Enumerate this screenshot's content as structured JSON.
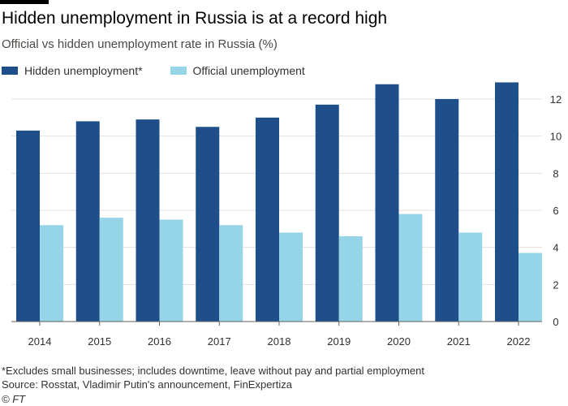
{
  "header": {
    "title": "Hidden unemployment in Russia is at a record high",
    "subtitle": "Official vs hidden unemployment rate in Russia (%)"
  },
  "legend": {
    "hidden_label": "Hidden unemployment*",
    "official_label": "Official unemployment"
  },
  "colors": {
    "hidden": "#1f4f8b",
    "official": "#96d4e8",
    "grid": "#e6e0da",
    "axis": "#66605c",
    "tick_text": "#33302e"
  },
  "footer": {
    "footnote": "*Excludes small businesses; includes downtime, leave without pay and partial employment",
    "source": "Source: Rosstat, Vladimir Putin's announcement, FinExpertiza",
    "credit": "© FT"
  },
  "chart_data": {
    "type": "bar",
    "title": "Hidden unemployment in Russia is at a record high",
    "subtitle": "Official vs hidden unemployment rate in Russia (%)",
    "categories": [
      "2014",
      "2015",
      "2016",
      "2017",
      "2018",
      "2019",
      "2020",
      "2021",
      "2022"
    ],
    "series": [
      {
        "name": "Hidden unemployment*",
        "values": [
          10.3,
          10.8,
          10.9,
          10.5,
          11.0,
          11.7,
          12.8,
          12.0,
          12.9
        ]
      },
      {
        "name": "Official unemployment",
        "values": [
          5.2,
          5.6,
          5.5,
          5.2,
          4.8,
          4.6,
          5.8,
          4.8,
          3.7
        ]
      }
    ],
    "ylim": [
      0,
      12
    ],
    "yticks": [
      0,
      2,
      4,
      6,
      8,
      10,
      12
    ],
    "xlabel": "",
    "ylabel": "",
    "grid": true,
    "y_axis_side": "right",
    "legend_position": "top-left"
  }
}
